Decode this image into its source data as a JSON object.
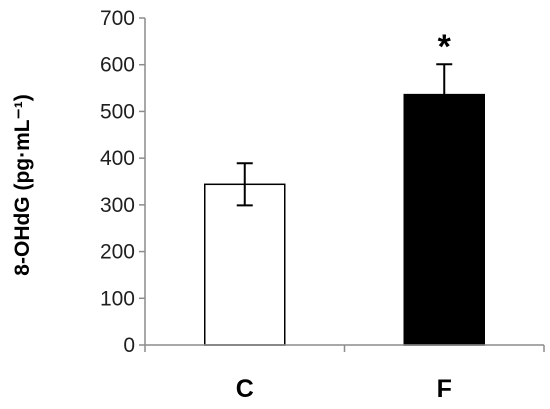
{
  "chart_data": {
    "type": "bar",
    "categories": [
      "C",
      "F"
    ],
    "values": [
      344,
      536
    ],
    "error": [
      45,
      65
    ],
    "bar_fills": [
      "#ffffff",
      "#000000"
    ],
    "annotations": [
      "",
      "*"
    ],
    "ylabel": "8-OHdG (pg·mL⁻¹)",
    "ylim": [
      0,
      700
    ],
    "yticks": [
      0,
      100,
      200,
      300,
      400,
      500,
      600,
      700
    ],
    "grid": false,
    "legend": "none"
  }
}
